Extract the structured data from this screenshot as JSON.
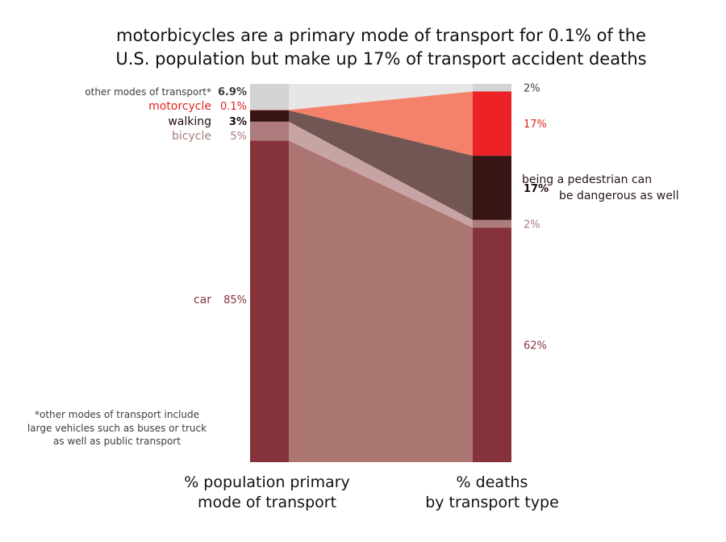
{
  "title": {
    "line1": "motorbicycles are a primary mode of transport for 0.1% of the",
    "line2": "U.S. population but make up 17% of transport accident deaths"
  },
  "chart_data": {
    "type": "alluvial",
    "title": "motorbicycles are a primary mode of transport for 0.1% of the U.S. population but make up 17% of transport accident deaths",
    "columns": [
      {
        "key": "population",
        "label_line1": "% population primary",
        "label_line2": "mode of transport"
      },
      {
        "key": "deaths",
        "label_line1": "% deaths",
        "label_line2": "by transport type"
      }
    ],
    "categories": [
      {
        "name": "other modes of transport*",
        "population": 6.9,
        "population_label": "6.9%",
        "deaths": 2,
        "deaths_label": "2%",
        "color_bar": "#d4d4d4",
        "color_flow": "#e6e6e6",
        "color_label": "#3d3d3d",
        "color_value": "#3d3d3d"
      },
      {
        "name": "motorcycle",
        "population": 0.1,
        "population_label": "0.1%",
        "deaths": 17,
        "deaths_label": "17%",
        "color_bar": "#ec2227",
        "color_flow": "#f4826a",
        "color_label": "#e1241d",
        "color_value": "#d7261e"
      },
      {
        "name": "walking",
        "population": 3,
        "population_label": "3%",
        "deaths": 17,
        "deaths_label": "17%",
        "color_bar": "#371515",
        "color_flow": "#725654",
        "color_label": "#1e0b0b",
        "color_value": "#1e0b0b"
      },
      {
        "name": "bicycle",
        "population": 5,
        "population_label": "5%",
        "deaths": 2,
        "deaths_label": "2%",
        "color_bar": "#ae7c7c",
        "color_flow": "#c7a3a3",
        "color_label": "#ab7a7a",
        "color_value": "#ab7a7a"
      },
      {
        "name": "car",
        "population": 85,
        "population_label": "85%",
        "deaths": 62,
        "deaths_label": "62%",
        "color_bar": "#86323a",
        "color_flow": "#ab7672",
        "color_label": "#86323a",
        "color_value": "#86323a"
      }
    ],
    "annotation": {
      "line1": "being a pedestrian can",
      "line2": "be dangerous as well"
    },
    "footnote": {
      "line1": "*other modes of transport include",
      "line2": "large vehicles such as buses or truck",
      "line3": "as well as public transport"
    }
  }
}
